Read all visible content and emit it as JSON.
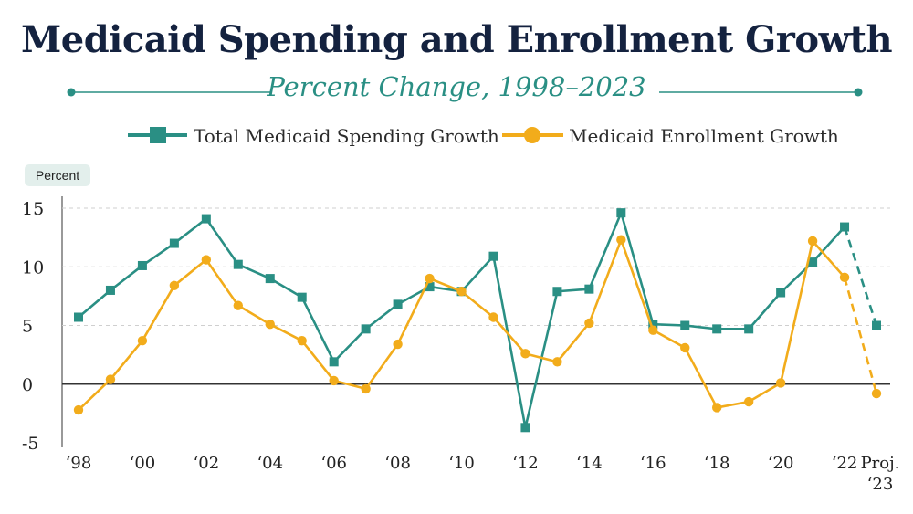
{
  "chart_data": {
    "type": "line",
    "title": "Medicaid Spending and Enrollment Growth",
    "subtitle": "Percent Change, 1998–2023",
    "ylabel": "Percent",
    "ylim": [
      -5,
      15
    ],
    "yticks": [
      15,
      10,
      5,
      0,
      -5
    ],
    "xtick_labels": [
      "‘98",
      "‘00",
      "‘02",
      "‘04",
      "‘06",
      "‘08",
      "‘10",
      "‘12",
      "‘14",
      "‘16",
      "‘18",
      "‘20",
      "‘22",
      "Proj.",
      "‘23"
    ],
    "x": [
      1998,
      1999,
      2000,
      2001,
      2002,
      2003,
      2004,
      2005,
      2006,
      2007,
      2008,
      2009,
      2010,
      2011,
      2012,
      2013,
      2014,
      2015,
      2016,
      2017,
      2018,
      2019,
      2020,
      2021,
      2022,
      2023
    ],
    "projected_from": 2022,
    "grid": "horizontal dashed",
    "legend_position": "top-center",
    "series": [
      {
        "name": "Total Medicaid Spending Growth",
        "color": "#2a8f84",
        "marker": "square",
        "values": [
          5.7,
          8.0,
          10.1,
          12.0,
          14.1,
          10.2,
          9.0,
          7.4,
          1.9,
          4.7,
          6.8,
          8.3,
          7.9,
          10.9,
          -3.7,
          7.9,
          8.1,
          14.6,
          5.1,
          5.0,
          4.7,
          4.7,
          7.8,
          10.4,
          13.4,
          5.0
        ]
      },
      {
        "name": "Medicaid Enrollment Growth",
        "color": "#f2ac1b",
        "marker": "circle",
        "values": [
          -2.2,
          0.4,
          3.7,
          8.4,
          10.6,
          6.7,
          5.1,
          3.7,
          0.3,
          -0.4,
          3.4,
          9.0,
          7.9,
          5.7,
          2.6,
          1.9,
          5.2,
          12.3,
          4.6,
          3.1,
          -2.0,
          -1.5,
          0.1,
          12.2,
          9.1,
          -0.8
        ]
      }
    ]
  }
}
